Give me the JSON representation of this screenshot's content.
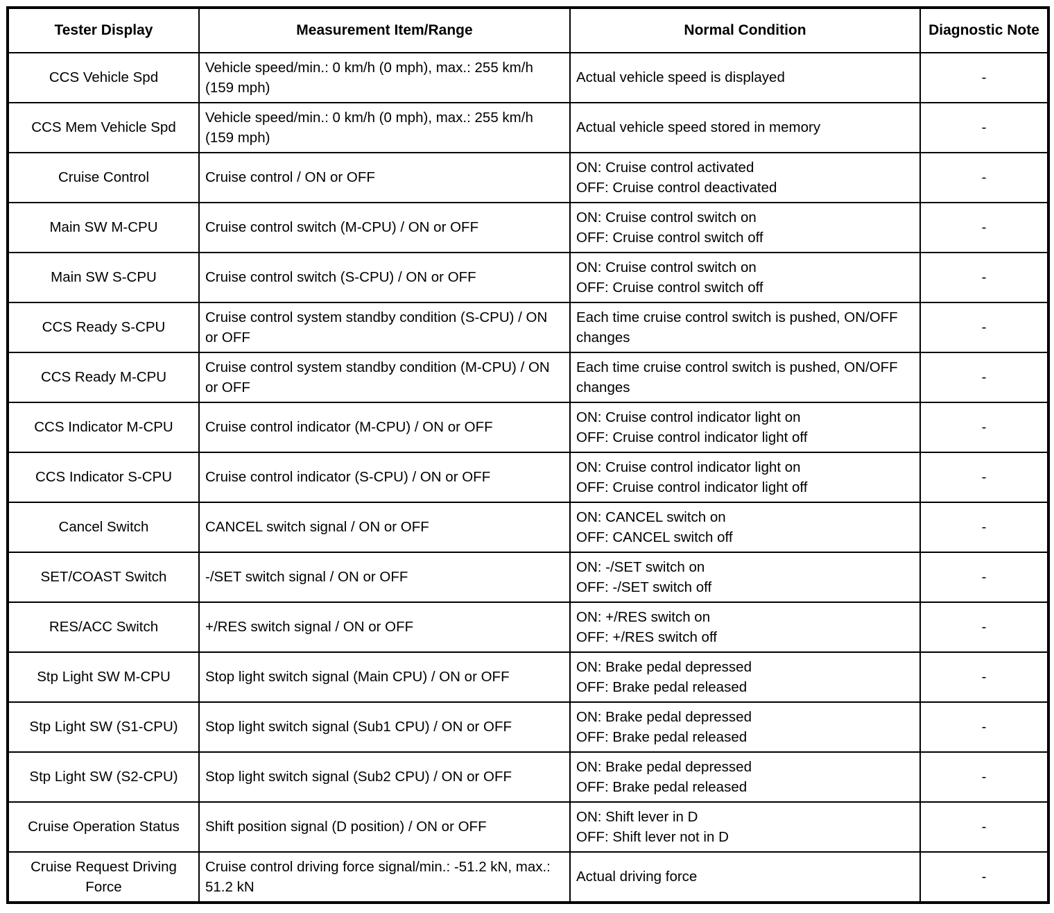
{
  "table": {
    "headers": [
      "Tester Display",
      "Measurement Item/Range",
      "Normal Condition",
      "Diagnostic Note"
    ],
    "rows": [
      {
        "tester_display": "CCS Vehicle Spd",
        "measurement": "Vehicle speed/min.: 0 km/h (0 mph), max.: 255 km/h (159 mph)",
        "normal_condition": [
          "Actual vehicle speed is displayed"
        ],
        "diagnostic_note": "-"
      },
      {
        "tester_display": "CCS Mem Vehicle Spd",
        "measurement": "Vehicle speed/min.: 0 km/h (0 mph), max.: 255 km/h (159 mph)",
        "normal_condition": [
          "Actual vehicle speed stored in memory"
        ],
        "diagnostic_note": "-"
      },
      {
        "tester_display": "Cruise Control",
        "measurement": "Cruise control / ON or OFF",
        "normal_condition": [
          "ON: Cruise control activated",
          "OFF: Cruise control deactivated"
        ],
        "diagnostic_note": "-"
      },
      {
        "tester_display": "Main SW M-CPU",
        "measurement": "Cruise control switch (M-CPU) / ON or OFF",
        "normal_condition": [
          "ON: Cruise control switch on",
          "OFF: Cruise control switch off"
        ],
        "diagnostic_note": "-"
      },
      {
        "tester_display": "Main SW S-CPU",
        "measurement": "Cruise control switch (S-CPU) / ON or OFF",
        "normal_condition": [
          "ON: Cruise control switch on",
          "OFF: Cruise control switch off"
        ],
        "diagnostic_note": "-"
      },
      {
        "tester_display": "CCS Ready S-CPU",
        "measurement": "Cruise control system standby condition (S-CPU) / ON or OFF",
        "normal_condition": [
          "Each time cruise control switch is pushed, ON/OFF changes"
        ],
        "diagnostic_note": "-"
      },
      {
        "tester_display": "CCS Ready M-CPU",
        "measurement": "Cruise control system standby condition (M-CPU) / ON or OFF",
        "normal_condition": [
          "Each time cruise control switch is pushed, ON/OFF changes"
        ],
        "diagnostic_note": "-"
      },
      {
        "tester_display": "CCS Indicator M-CPU",
        "measurement": "Cruise control indicator (M-CPU) / ON or OFF",
        "normal_condition": [
          "ON: Cruise control indicator light on",
          "OFF: Cruise control indicator light off"
        ],
        "diagnostic_note": "-"
      },
      {
        "tester_display": "CCS Indicator S-CPU",
        "measurement": "Cruise control indicator (S-CPU) / ON or OFF",
        "normal_condition": [
          "ON: Cruise control indicator light on",
          "OFF: Cruise control indicator light off"
        ],
        "diagnostic_note": "-"
      },
      {
        "tester_display": "Cancel Switch",
        "measurement": "CANCEL switch signal / ON or OFF",
        "normal_condition": [
          "ON: CANCEL switch on",
          "OFF: CANCEL switch off"
        ],
        "diagnostic_note": "-"
      },
      {
        "tester_display": "SET/COAST Switch",
        "measurement": "-/SET switch signal / ON or OFF",
        "normal_condition": [
          "ON: -/SET switch on",
          "OFF: -/SET switch off"
        ],
        "diagnostic_note": "-"
      },
      {
        "tester_display": "RES/ACC Switch",
        "measurement": "+/RES switch signal / ON or OFF",
        "normal_condition": [
          "ON: +/RES switch on",
          "OFF: +/RES switch off"
        ],
        "diagnostic_note": "-"
      },
      {
        "tester_display": "Stp Light SW M-CPU",
        "measurement": "Stop light switch signal (Main CPU) / ON or OFF",
        "normal_condition": [
          "ON: Brake pedal depressed",
          "OFF: Brake pedal released"
        ],
        "diagnostic_note": "-"
      },
      {
        "tester_display": "Stp Light SW (S1-CPU)",
        "measurement": "Stop light switch signal (Sub1 CPU) / ON or OFF",
        "normal_condition": [
          "ON: Brake pedal depressed",
          "OFF: Brake pedal released"
        ],
        "diagnostic_note": "-"
      },
      {
        "tester_display": "Stp Light SW (S2-CPU)",
        "measurement": "Stop light switch signal (Sub2 CPU) / ON or OFF",
        "normal_condition": [
          "ON: Brake pedal depressed",
          "OFF: Brake pedal released"
        ],
        "diagnostic_note": "-"
      },
      {
        "tester_display": "Cruise Operation Status",
        "measurement": "Shift position signal (D position) / ON or OFF",
        "normal_condition": [
          "ON: Shift lever in D",
          "OFF: Shift lever not in D"
        ],
        "diagnostic_note": "-"
      },
      {
        "tester_display": "Cruise Request Driving Force",
        "measurement": "Cruise control driving force signal/min.: -51.2 kN, max.: 51.2 kN",
        "normal_condition": [
          "Actual driving force"
        ],
        "diagnostic_note": "-"
      }
    ]
  }
}
